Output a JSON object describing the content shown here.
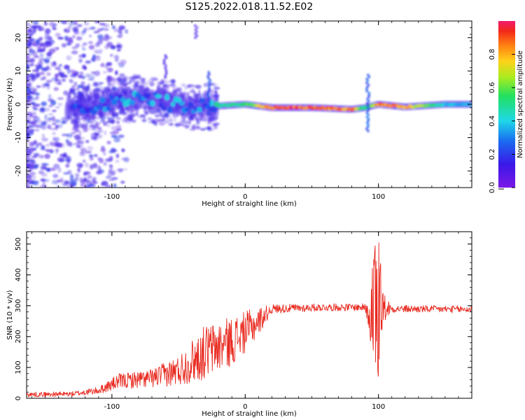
{
  "title": "S125.2022.018.11.52.E02",
  "colors": {
    "signal": "#e8281e",
    "spectrum_strong": "#e8281e",
    "spectrum_mid": "#22dd55",
    "spectrum_weak": "#6a18e6",
    "frame": "#000000",
    "background": "#ffffff"
  },
  "chart_data": [
    {
      "type": "heatmap",
      "name": "spectrogram",
      "xlabel": "Height of straight line (km)",
      "ylabel": "Frequency (Hz)",
      "xlim": [
        -164,
        170
      ],
      "ylim": [
        -25,
        25
      ],
      "x_ticks": [
        -100,
        0,
        100
      ],
      "x_tick_labels": [
        "-100",
        "0",
        "100"
      ],
      "y_ticks": [
        -20,
        -10,
        0,
        10,
        20
      ],
      "y_tick_labels": [
        "-20",
        "-10",
        "0",
        "10",
        "20"
      ],
      "colorbar": {
        "label": "Normalized spectral amplitude",
        "range": [
          0,
          1
        ],
        "ticks": [
          0.0,
          0.2,
          0.4,
          0.6,
          0.8
        ],
        "tick_labels": [
          "0.0",
          "0.2",
          "0.4",
          "0.6",
          "0.8"
        ],
        "colormap": "rainbow (violet to red)"
      },
      "ridge": [
        {
          "x": -120,
          "f": -1.0,
          "amp": 0.3
        },
        {
          "x": -100,
          "f": 1.0,
          "amp": 0.35
        },
        {
          "x": -80,
          "f": 2.0,
          "amp": 0.35
        },
        {
          "x": -60,
          "f": 0.5,
          "amp": 0.4
        },
        {
          "x": -40,
          "f": -1.0,
          "amp": 0.3
        },
        {
          "x": -20,
          "f": -0.5,
          "amp": 0.5
        },
        {
          "x": 0,
          "f": 0.0,
          "amp": 0.55
        },
        {
          "x": 20,
          "f": -1.0,
          "amp": 0.95
        },
        {
          "x": 50,
          "f": -1.0,
          "amp": 0.95
        },
        {
          "x": 80,
          "f": -1.5,
          "amp": 0.9
        },
        {
          "x": 90,
          "f": -1.0,
          "amp": 0.5
        },
        {
          "x": 100,
          "f": 0.0,
          "amp": 0.9
        },
        {
          "x": 120,
          "f": -0.8,
          "amp": 0.85
        },
        {
          "x": 150,
          "f": 0.0,
          "amp": 0.4
        },
        {
          "x": 170,
          "f": 0.0,
          "amp": 0.35
        }
      ]
    },
    {
      "type": "line",
      "name": "snr",
      "xlabel": "Height of straight line (km)",
      "ylabel": "SNR (10 * v/v)",
      "xlim": [
        -164,
        170
      ],
      "ylim": [
        0,
        540
      ],
      "x_ticks": [
        -100,
        0,
        100
      ],
      "x_tick_labels": [
        "-100",
        "0",
        "100"
      ],
      "y_ticks": [
        0,
        100,
        200,
        300,
        400,
        500
      ],
      "y_tick_labels": [
        "0",
        "100",
        "200",
        "300",
        "400",
        "500"
      ],
      "series": [
        {
          "name": "SNR",
          "envelope": [
            {
              "x": -164,
              "y": 12,
              "noise": 8
            },
            {
              "x": -130,
              "y": 14,
              "noise": 8
            },
            {
              "x": -110,
              "y": 25,
              "noise": 12
            },
            {
              "x": -95,
              "y": 55,
              "noise": 25
            },
            {
              "x": -70,
              "y": 65,
              "noise": 30
            },
            {
              "x": -50,
              "y": 90,
              "noise": 50
            },
            {
              "x": -30,
              "y": 150,
              "noise": 90
            },
            {
              "x": -10,
              "y": 185,
              "noise": 80
            },
            {
              "x": 5,
              "y": 230,
              "noise": 60
            },
            {
              "x": 20,
              "y": 290,
              "noise": 15
            },
            {
              "x": 60,
              "y": 295,
              "noise": 12
            },
            {
              "x": 90,
              "y": 295,
              "noise": 12
            },
            {
              "x": 95,
              "y": 300,
              "noise": 150
            },
            {
              "x": 100,
              "y": 300,
              "noise": 250
            },
            {
              "x": 103,
              "y": 295,
              "noise": 60
            },
            {
              "x": 110,
              "y": 290,
              "noise": 12
            },
            {
              "x": 170,
              "y": 288,
              "noise": 12
            }
          ]
        }
      ]
    }
  ]
}
